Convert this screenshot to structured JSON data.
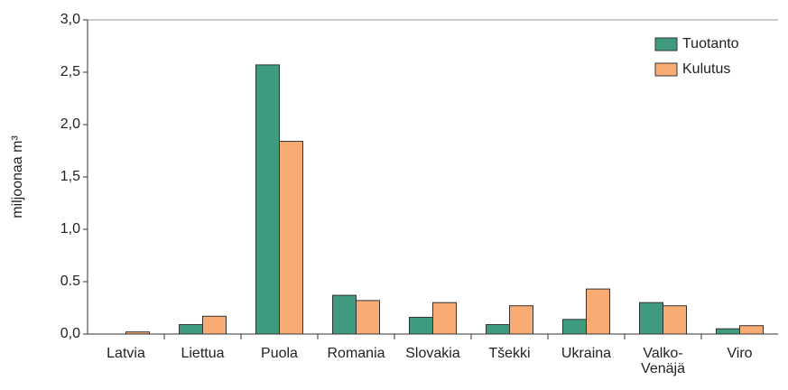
{
  "chart_data": {
    "type": "bar",
    "ylabel": "miljoonaa m³",
    "categories": [
      "Latvia",
      "Liettua",
      "Puola",
      "Romania",
      "Slovakia",
      "Tšekki",
      "Ukraina",
      "Valko-Venäjä",
      "Viro"
    ],
    "series": [
      {
        "name": "Tuotanto",
        "color": "#3f9b80",
        "values": [
          0,
          0.09,
          2.57,
          0.37,
          0.16,
          0.09,
          0.14,
          0.3,
          0.05
        ]
      },
      {
        "name": "Kulutus",
        "color": "#f9ab74",
        "values": [
          0.02,
          0.17,
          1.84,
          0.32,
          0.3,
          0.27,
          0.43,
          0.27,
          0.08
        ]
      }
    ],
    "ylim": [
      0,
      3.0
    ],
    "yticks": [
      {
        "value": 0,
        "label": "0,0"
      },
      0.5,
      {
        "value": 1.0,
        "label": "1,0"
      },
      {
        "value": 1.5,
        "label": "1,5"
      },
      {
        "value": 2.0,
        "label": "2,0"
      },
      {
        "value": 2.5,
        "label": "2,5"
      },
      {
        "value": 3.0,
        "label": "3,0"
      }
    ],
    "legend": "upper right"
  }
}
